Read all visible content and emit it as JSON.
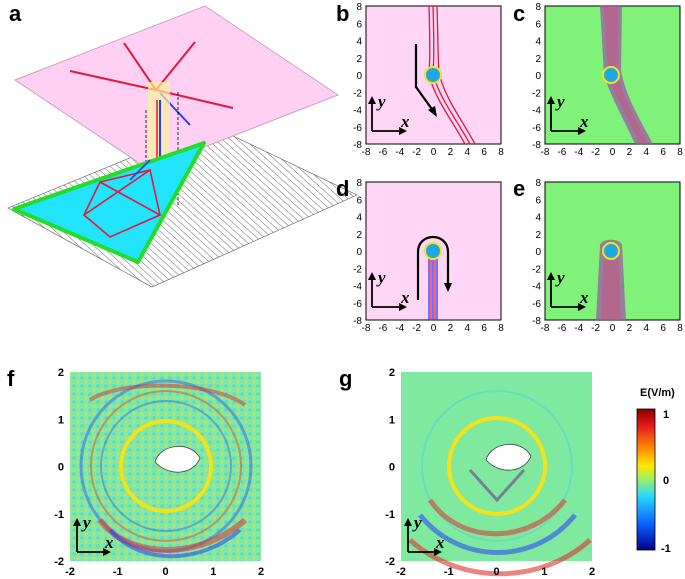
{
  "panels": {
    "a": {
      "label": "a"
    },
    "b": {
      "label": "b",
      "x_ticks": [
        "-8",
        "-6",
        "-4",
        "-2",
        "0",
        "2",
        "4",
        "6",
        "8"
      ],
      "y_ticks": [
        "8",
        "6",
        "4",
        "2",
        "0",
        "-2",
        "-4",
        "-6",
        "-8"
      ],
      "x_var": "x",
      "y_var": "y",
      "background": "#ffd6f6"
    },
    "c": {
      "label": "c",
      "x_ticks": [
        "-8",
        "-6",
        "-4",
        "-2",
        "0",
        "2",
        "4",
        "6",
        "8"
      ],
      "y_ticks": [
        "8",
        "6",
        "4",
        "2",
        "0",
        "-2",
        "-4",
        "-6",
        "-8"
      ],
      "x_var": "x",
      "y_var": "y",
      "background": "#80f27a"
    },
    "d": {
      "label": "d",
      "x_ticks": [
        "-8",
        "-6",
        "-4",
        "-2",
        "0",
        "2",
        "4",
        "6",
        "8"
      ],
      "y_ticks": [
        "8",
        "6",
        "4",
        "2",
        "0",
        "-2",
        "-4",
        "-6",
        "-8"
      ],
      "x_var": "x",
      "y_var": "y",
      "background": "#ffd6f6"
    },
    "e": {
      "label": "e",
      "x_ticks": [
        "-8",
        "-6",
        "-4",
        "-2",
        "0",
        "2",
        "4",
        "6",
        "8"
      ],
      "y_ticks": [
        "8",
        "6",
        "4",
        "2",
        "0",
        "-2",
        "-4",
        "-6",
        "-8"
      ],
      "x_var": "x",
      "y_var": "y",
      "background": "#80f27a"
    },
    "f": {
      "label": "f",
      "x_ticks": [
        "-2",
        "-1",
        "0",
        "1",
        "2"
      ],
      "y_ticks": [
        "2",
        "1",
        "0",
        "-1",
        "-2"
      ],
      "x_var": "x",
      "y_var": "y"
    },
    "g": {
      "label": "g",
      "x_ticks": [
        "-2",
        "-1",
        "0",
        "1",
        "2"
      ],
      "y_ticks": [
        "2",
        "1",
        "0",
        "-1",
        "-2"
      ],
      "x_var": "x",
      "y_var": "y"
    }
  },
  "colorbar": {
    "title": "E(V/m)",
    "tick_labels": [
      "1",
      "0",
      "-1"
    ],
    "colors": [
      "#8a0000",
      "#e41a1a",
      "#ff8c00",
      "#ffe600",
      "#9cf06a",
      "#28d7ff",
      "#0a5fff",
      "#00008a"
    ]
  },
  "colors": {
    "pink_sheet": "#ffd0f4",
    "green_field": "#80f27a",
    "ray_red": "#e0193c",
    "ray_blue": "#2a3cff",
    "cyan_triangle": "#22e4ff",
    "green_border": "#22dd2a",
    "ring_yellow": "#f4e21a",
    "obstacle_blue": "#1fa8e6"
  }
}
